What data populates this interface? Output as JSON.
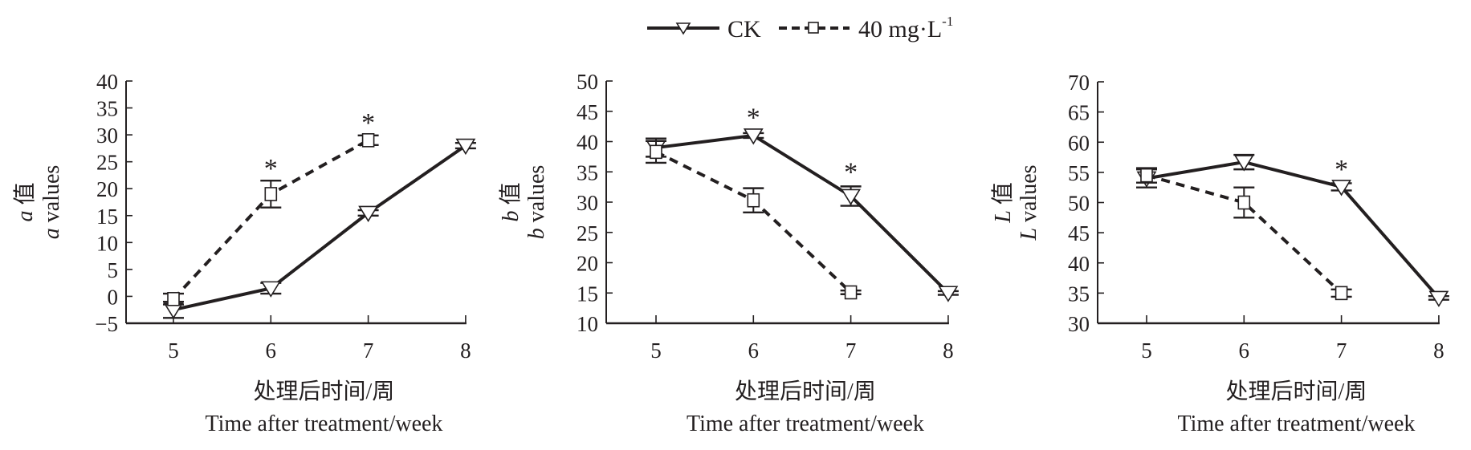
{
  "legend": {
    "items": [
      {
        "name": "CK",
        "marker": "triangle-down",
        "line": "solid"
      },
      {
        "name": "40 mg·L",
        "superscript": "-1",
        "marker": "square",
        "line": "dashed"
      }
    ]
  },
  "colors": {
    "ink": "#231f20",
    "marker_fill": "#ffffff"
  },
  "chart_data": [
    {
      "type": "line",
      "title": "",
      "ylabel_cn_var": "a",
      "ylabel_cn": " 值",
      "ylabel_en_var": "a",
      "ylabel_en": " values",
      "xlabel_cn": "处理后时间/周",
      "xlabel_en": "Time after treatment/week",
      "x": [
        5,
        6,
        7,
        8
      ],
      "xticks": [
        "5",
        "6",
        "7",
        "8"
      ],
      "yticks": [
        "−5",
        "0",
        "5",
        "10",
        "15",
        "20",
        "25",
        "30",
        "35",
        "40"
      ],
      "ytick_values": [
        -5,
        0,
        5,
        10,
        15,
        20,
        25,
        30,
        35,
        40
      ],
      "ylim": [
        -5,
        40
      ],
      "grid": false,
      "series": [
        {
          "name": "CK",
          "values": [
            -2.5,
            1.5,
            15.5,
            28.0
          ],
          "errors": [
            1.5,
            1.0,
            0.5,
            0.5
          ]
        },
        {
          "name": "40 mg·L-1",
          "values": [
            -0.5,
            19.0,
            29.0,
            null
          ],
          "errors": [
            1.0,
            2.5,
            0.9,
            null
          ]
        }
      ],
      "annotations": [
        {
          "x": 6,
          "text": "*",
          "above_value": 21.5
        },
        {
          "x": 7,
          "text": "*",
          "above_value": 30.0
        }
      ]
    },
    {
      "type": "line",
      "title": "",
      "ylabel_cn_var": "b",
      "ylabel_cn": " 值",
      "ylabel_en_var": "b",
      "ylabel_en": " values",
      "xlabel_cn": "处理后时间/周",
      "xlabel_en": "Time after treatment/week",
      "x": [
        5,
        6,
        7,
        8
      ],
      "xticks": [
        "5",
        "6",
        "7",
        "8"
      ],
      "yticks": [
        "10",
        "15",
        "20",
        "25",
        "30",
        "35",
        "40",
        "45",
        "50"
      ],
      "ytick_values": [
        10,
        15,
        20,
        25,
        30,
        35,
        40,
        45,
        50
      ],
      "ylim": [
        10,
        50
      ],
      "grid": false,
      "series": [
        {
          "name": "CK",
          "values": [
            39.0,
            41.0,
            31.0,
            15.0
          ],
          "errors": [
            1.5,
            0.4,
            1.6,
            0.3
          ]
        },
        {
          "name": "40 mg·L-1",
          "values": [
            38.3,
            30.3,
            15.1,
            null
          ],
          "errors": [
            1.8,
            2.0,
            0.3,
            null
          ]
        }
      ],
      "annotations": [
        {
          "x": 6,
          "text": "*",
          "above_value": 42.0
        },
        {
          "x": 7,
          "text": "*",
          "above_value": 33.0
        }
      ]
    },
    {
      "type": "line",
      "title": "",
      "ylabel_cn_var": "L",
      "ylabel_cn": " 值",
      "ylabel_en_var": "L",
      "ylabel_en": " values",
      "xlabel_cn": "处理后时间/周",
      "xlabel_en": "Time after treatment/week",
      "x": [
        5,
        6,
        7,
        8
      ],
      "xticks": [
        "5",
        "6",
        "7",
        "8"
      ],
      "yticks": [
        "30",
        "35",
        "40",
        "45",
        "50",
        "55",
        "60",
        "65",
        "70"
      ],
      "ytick_values": [
        30,
        35,
        40,
        45,
        50,
        55,
        60,
        65,
        70
      ],
      "ylim": [
        30,
        70
      ],
      "grid": false,
      "series": [
        {
          "name": "CK",
          "values": [
            54.0,
            56.7,
            52.6,
            34.2
          ],
          "errors": [
            1.5,
            1.2,
            0.6,
            0.3
          ]
        },
        {
          "name": "40 mg·L-1",
          "values": [
            54.5,
            50.0,
            35.0,
            null
          ],
          "errors": [
            1.2,
            2.5,
            0.6,
            null
          ]
        }
      ],
      "annotations": [
        {
          "x": 7,
          "text": "*",
          "above_value": 53.5
        }
      ]
    }
  ]
}
